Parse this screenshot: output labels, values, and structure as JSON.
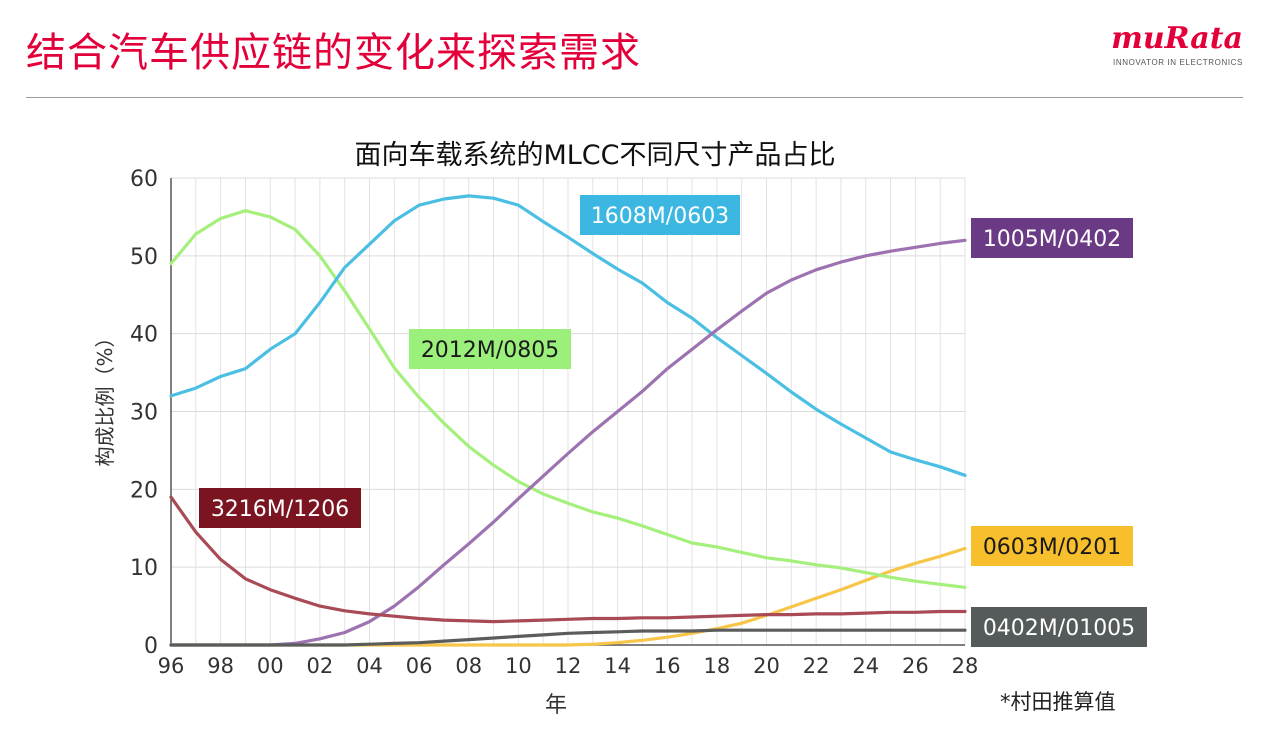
{
  "slide": {
    "title": "结合汽车供应链的变化来探索需求",
    "footnote": "*村田推算值"
  },
  "logo": {
    "wordmark": "muRata",
    "tagline": "INNOVATOR IN ELECTRONICS",
    "color": "#e3003a"
  },
  "chart_data": {
    "type": "line",
    "title": "面向车载系统的MLCC不同尺寸产品占比",
    "xlabel": "年",
    "ylabel": "构成比例（%）",
    "ylim": [
      0,
      60
    ],
    "xlim": [
      1996,
      2028
    ],
    "grid": true,
    "y_ticks": [
      "0",
      "10",
      "20",
      "30",
      "40",
      "50",
      "60"
    ],
    "x_ticks": [
      "96",
      "98",
      "00",
      "02",
      "04",
      "06",
      "08",
      "10",
      "12",
      "14",
      "16",
      "18",
      "20",
      "22",
      "24",
      "26",
      "28"
    ],
    "x": [
      1996,
      1997,
      1998,
      1999,
      2000,
      2001,
      2002,
      2003,
      2004,
      2005,
      2006,
      2007,
      2008,
      2009,
      2010,
      2011,
      2012,
      2013,
      2014,
      2015,
      2016,
      2017,
      2018,
      2019,
      2020,
      2021,
      2022,
      2023,
      2024,
      2025,
      2026,
      2027,
      2028
    ],
    "series": [
      {
        "name": "1608M/0603",
        "color": "#4bbfe3",
        "label_bg": "#3bb7e2",
        "values": [
          32,
          33,
          34.5,
          35.5,
          38,
          40,
          44,
          48.5,
          51.5,
          54.5,
          56.5,
          57.3,
          57.7,
          57.4,
          56.5,
          54.4,
          52.4,
          50.3,
          48.3,
          46.5,
          44,
          42,
          39.5,
          37.2,
          34.9,
          32.5,
          30.3,
          28.4,
          26.6,
          24.8,
          23.8,
          22.9,
          21.8
        ]
      },
      {
        "name": "1005M/0402",
        "color": "#9d72b0",
        "label_bg": "#6b3a84",
        "values": [
          0,
          0,
          0,
          0,
          0,
          0.2,
          0.8,
          1.6,
          3,
          5,
          7.5,
          10.3,
          13,
          15.8,
          18.8,
          21.7,
          24.6,
          27.4,
          30,
          32.6,
          35.5,
          38,
          40.5,
          42.9,
          45.2,
          46.9,
          48.2,
          49.2,
          50,
          50.6,
          51.1,
          51.6,
          52
        ]
      },
      {
        "name": "2012M/0805",
        "color": "#a5ef7c",
        "label_bg": "#9af07a",
        "values": [
          49,
          52.8,
          54.8,
          55.8,
          55,
          53.4,
          50,
          45.5,
          40.6,
          35.6,
          31.8,
          28.5,
          25.5,
          23.1,
          21,
          19.4,
          18.2,
          17.1,
          16.3,
          15.3,
          14.2,
          13.1,
          12.6,
          11.9,
          11.2,
          10.8,
          10.3,
          9.9,
          9.3,
          8.7,
          8.2,
          7.8,
          7.4
        ]
      },
      {
        "name": "3216M/1206",
        "color": "#a94a57",
        "label_bg": "#7a1420",
        "values": [
          19,
          14.5,
          11,
          8.5,
          7.1,
          6,
          5,
          4.4,
          4,
          3.7,
          3.4,
          3.2,
          3.1,
          3,
          3.1,
          3.2,
          3.3,
          3.4,
          3.4,
          3.5,
          3.5,
          3.6,
          3.7,
          3.8,
          3.9,
          3.9,
          4,
          4,
          4.1,
          4.2,
          4.2,
          4.3,
          4.3
        ]
      },
      {
        "name": "0603M/0201",
        "color": "#f7c548",
        "label_bg": "#f8bf2c",
        "values": [
          0,
          0,
          0,
          0,
          0,
          0,
          0,
          0,
          0,
          0,
          0,
          0,
          0,
          0,
          0,
          0,
          0,
          0.1,
          0.3,
          0.6,
          1,
          1.5,
          2.1,
          2.8,
          3.8,
          4.9,
          6,
          7.1,
          8.3,
          9.5,
          10.5,
          11.4,
          12.4
        ]
      },
      {
        "name": "0402M/01005",
        "color": "#5a5d5c",
        "label_bg": "#555b5a",
        "values": [
          0,
          0,
          0,
          0,
          0,
          0,
          0,
          0,
          0.1,
          0.2,
          0.3,
          0.5,
          0.7,
          0.9,
          1.1,
          1.3,
          1.5,
          1.6,
          1.7,
          1.8,
          1.8,
          1.8,
          1.9,
          1.9,
          1.9,
          1.9,
          1.9,
          1.9,
          1.9,
          1.9,
          1.9,
          1.9,
          1.9
        ]
      }
    ],
    "annotations": [
      {
        "series": "1608M/0603",
        "text": "1608M/0603",
        "text_color": "#ffffff"
      },
      {
        "series": "1005M/0402",
        "text": "1005M/0402",
        "text_color": "#ffffff"
      },
      {
        "series": "2012M/0805",
        "text": "2012M/0805",
        "text_color": "#1a1a1a"
      },
      {
        "series": "3216M/1206",
        "text": "3216M/1206",
        "text_color": "#ffffff"
      },
      {
        "series": "0603M/0201",
        "text": "0603M/0201",
        "text_color": "#1a1a1a"
      },
      {
        "series": "0402M/01005",
        "text": "0402M/01005",
        "text_color": "#ffffff"
      }
    ]
  }
}
